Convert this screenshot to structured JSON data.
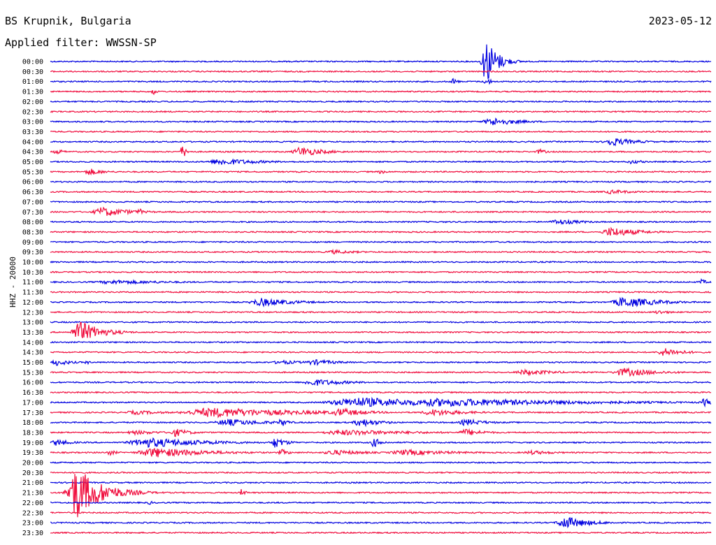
{
  "header": {
    "station": "BS Krupnik, Bulgaria",
    "filter": "Applied filter: WWSSN-SP",
    "date": "2023-05-12"
  },
  "channel_label": "HHZ - 20000",
  "colors": {
    "trace_a": "#0000e0",
    "trace_b": "#f01040"
  },
  "chart_data": {
    "type": "line",
    "title": "",
    "xlabel": "",
    "ylabel": "HHZ - 20000",
    "grid": false,
    "legend": "none",
    "row_interval_minutes": 30,
    "rows": [
      {
        "label": "00:00",
        "color": "#0000e0",
        "events": [
          {
            "at": 0.66,
            "amp": 34,
            "w": 0.015
          }
        ]
      },
      {
        "label": "00:30",
        "color": "#f01040",
        "events": []
      },
      {
        "label": "01:00",
        "color": "#0000e0",
        "events": [
          {
            "at": 0.61,
            "amp": 5,
            "w": 0.005
          },
          {
            "at": 0.66,
            "amp": 6,
            "w": 0.006
          }
        ]
      },
      {
        "label": "01:30",
        "color": "#f01040",
        "events": [
          {
            "at": 0.155,
            "amp": 6,
            "w": 0.003
          }
        ]
      },
      {
        "label": "02:00",
        "color": "#0000e0",
        "events": []
      },
      {
        "label": "02:30",
        "color": "#f01040",
        "events": []
      },
      {
        "label": "03:00",
        "color": "#0000e0",
        "events": [
          {
            "at": 0.67,
            "amp": 6,
            "w": 0.04
          }
        ]
      },
      {
        "label": "03:30",
        "color": "#f01040",
        "events": []
      },
      {
        "label": "04:00",
        "color": "#0000e0",
        "events": [
          {
            "at": 0.85,
            "amp": 6,
            "w": 0.035
          }
        ]
      },
      {
        "label": "04:30",
        "color": "#f01040",
        "events": [
          {
            "at": 0.01,
            "amp": 4,
            "w": 0.01
          },
          {
            "at": 0.2,
            "amp": 11,
            "w": 0.004
          },
          {
            "at": 0.38,
            "amp": 7,
            "w": 0.035
          },
          {
            "at": 0.74,
            "amp": 4,
            "w": 0.01
          }
        ]
      },
      {
        "label": "05:00",
        "color": "#0000e0",
        "events": [
          {
            "at": 0.26,
            "amp": 5,
            "w": 0.06
          },
          {
            "at": 0.88,
            "amp": 3,
            "w": 0.02
          }
        ]
      },
      {
        "label": "05:30",
        "color": "#f01040",
        "events": [
          {
            "at": 0.06,
            "amp": 5,
            "w": 0.02
          },
          {
            "at": 0.5,
            "amp": 3,
            "w": 0.01
          }
        ]
      },
      {
        "label": "06:00",
        "color": "#0000e0",
        "events": []
      },
      {
        "label": "06:30",
        "color": "#f01040",
        "events": [
          {
            "at": 0.85,
            "amp": 3,
            "w": 0.04
          }
        ]
      },
      {
        "label": "07:00",
        "color": "#0000e0",
        "events": []
      },
      {
        "label": "07:30",
        "color": "#f01040",
        "events": [
          {
            "at": 0.08,
            "amp": 7,
            "w": 0.04
          },
          {
            "at": 0.135,
            "amp": 5,
            "w": 0.005
          }
        ]
      },
      {
        "label": "08:00",
        "color": "#0000e0",
        "events": [
          {
            "at": 0.77,
            "amp": 4,
            "w": 0.04
          }
        ]
      },
      {
        "label": "08:30",
        "color": "#f01040",
        "events": [
          {
            "at": 0.85,
            "amp": 7,
            "w": 0.04
          }
        ]
      },
      {
        "label": "09:00",
        "color": "#0000e0",
        "events": []
      },
      {
        "label": "09:30",
        "color": "#f01040",
        "events": [
          {
            "at": 0.43,
            "amp": 3,
            "w": 0.04
          }
        ]
      },
      {
        "label": "10:00",
        "color": "#0000e0",
        "events": []
      },
      {
        "label": "10:30",
        "color": "#f01040",
        "events": []
      },
      {
        "label": "11:00",
        "color": "#0000e0",
        "events": [
          {
            "at": 0.1,
            "amp": 3,
            "w": 0.1
          },
          {
            "at": 0.985,
            "amp": 4,
            "w": 0.01
          }
        ]
      },
      {
        "label": "11:30",
        "color": "#f01040",
        "events": []
      },
      {
        "label": "12:00",
        "color": "#0000e0",
        "events": [
          {
            "at": 0.32,
            "amp": 6,
            "w": 0.05
          },
          {
            "at": 0.87,
            "amp": 8,
            "w": 0.05
          }
        ]
      },
      {
        "label": "12:30",
        "color": "#f01040",
        "events": [
          {
            "at": 0.92,
            "amp": 3,
            "w": 0.02
          }
        ]
      },
      {
        "label": "13:00",
        "color": "#0000e0",
        "events": []
      },
      {
        "label": "13:30",
        "color": "#f01040",
        "events": [
          {
            "at": 0.045,
            "amp": 16,
            "w": 0.03
          }
        ]
      },
      {
        "label": "14:00",
        "color": "#0000e0",
        "events": []
      },
      {
        "label": "14:30",
        "color": "#f01040",
        "events": [
          {
            "at": 0.93,
            "amp": 6,
            "w": 0.03
          }
        ]
      },
      {
        "label": "15:00",
        "color": "#0000e0",
        "events": [
          {
            "at": 0.01,
            "amp": 5,
            "w": 0.02
          },
          {
            "at": 0.055,
            "amp": 3,
            "w": 0.005
          },
          {
            "at": 0.35,
            "amp": 3,
            "w": 0.04
          },
          {
            "at": 0.4,
            "amp": 4,
            "w": 0.04
          }
        ]
      },
      {
        "label": "15:30",
        "color": "#f01040",
        "events": [
          {
            "at": 0.72,
            "amp": 4,
            "w": 0.05
          },
          {
            "at": 0.87,
            "amp": 6,
            "w": 0.05
          }
        ]
      },
      {
        "label": "16:00",
        "color": "#0000e0",
        "events": [
          {
            "at": 0.4,
            "amp": 5,
            "w": 0.05
          }
        ]
      },
      {
        "label": "16:30",
        "color": "#f01040",
        "events": []
      },
      {
        "label": "17:00",
        "color": "#0000e0",
        "events": [
          {
            "at": 0.47,
            "amp": 7,
            "w": 0.15
          },
          {
            "at": 0.6,
            "amp": 6,
            "w": 0.22
          },
          {
            "at": 0.99,
            "amp": 6,
            "w": 0.01
          }
        ]
      },
      {
        "label": "17:30",
        "color": "#f01040",
        "events": [
          {
            "at": 0.25,
            "amp": 7,
            "w": 0.14
          },
          {
            "at": 0.44,
            "amp": 6,
            "w": 0.04
          },
          {
            "at": 0.58,
            "amp": 5,
            "w": 0.05
          },
          {
            "at": 0.13,
            "amp": 3,
            "w": 0.05
          }
        ]
      },
      {
        "label": "18:00",
        "color": "#0000e0",
        "events": [
          {
            "at": 0.27,
            "amp": 5,
            "w": 0.06
          },
          {
            "at": 0.35,
            "amp": 6,
            "w": 0.01
          },
          {
            "at": 0.47,
            "amp": 6,
            "w": 0.03
          },
          {
            "at": 0.63,
            "amp": 5,
            "w": 0.03
          }
        ]
      },
      {
        "label": "18:30",
        "color": "#f01040",
        "events": [
          {
            "at": 0.13,
            "amp": 3,
            "w": 0.05
          },
          {
            "at": 0.19,
            "amp": 6,
            "w": 0.02
          },
          {
            "at": 0.45,
            "amp": 4,
            "w": 0.12
          },
          {
            "at": 0.63,
            "amp": 5,
            "w": 0.03
          }
        ]
      },
      {
        "label": "19:00",
        "color": "#0000e0",
        "events": [
          {
            "at": 0.01,
            "amp": 5,
            "w": 0.02
          },
          {
            "at": 0.15,
            "amp": 7,
            "w": 0.09
          },
          {
            "at": 0.34,
            "amp": 8,
            "w": 0.015
          },
          {
            "at": 0.49,
            "amp": 7,
            "w": 0.01
          }
        ]
      },
      {
        "label": "19:30",
        "color": "#f01040",
        "events": [
          {
            "at": 0.09,
            "amp": 4,
            "w": 0.01
          },
          {
            "at": 0.16,
            "amp": 7,
            "w": 0.08
          },
          {
            "at": 0.35,
            "amp": 5,
            "w": 0.01
          },
          {
            "at": 0.43,
            "amp": 4,
            "w": 0.05
          },
          {
            "at": 0.54,
            "amp": 4,
            "w": 0.08
          },
          {
            "at": 0.73,
            "amp": 3,
            "w": 0.04
          }
        ]
      },
      {
        "label": "20:00",
        "color": "#0000e0",
        "events": []
      },
      {
        "label": "20:30",
        "color": "#f01040",
        "events": []
      },
      {
        "label": "21:00",
        "color": "#0000e0",
        "events": []
      },
      {
        "label": "21:30",
        "color": "#f01040",
        "events": [
          {
            "at": 0.04,
            "amp": 38,
            "w": 0.035
          },
          {
            "at": 0.29,
            "amp": 6,
            "w": 0.004
          }
        ]
      },
      {
        "label": "22:00",
        "color": "#0000e0",
        "events": [
          {
            "at": 0.15,
            "amp": 3,
            "w": 0.005
          }
        ]
      },
      {
        "label": "22:30",
        "color": "#f01040",
        "events": []
      },
      {
        "label": "23:00",
        "color": "#0000e0",
        "events": [
          {
            "at": 0.78,
            "amp": 9,
            "w": 0.035
          }
        ]
      },
      {
        "label": "23:30",
        "color": "#f01040",
        "events": []
      }
    ]
  }
}
